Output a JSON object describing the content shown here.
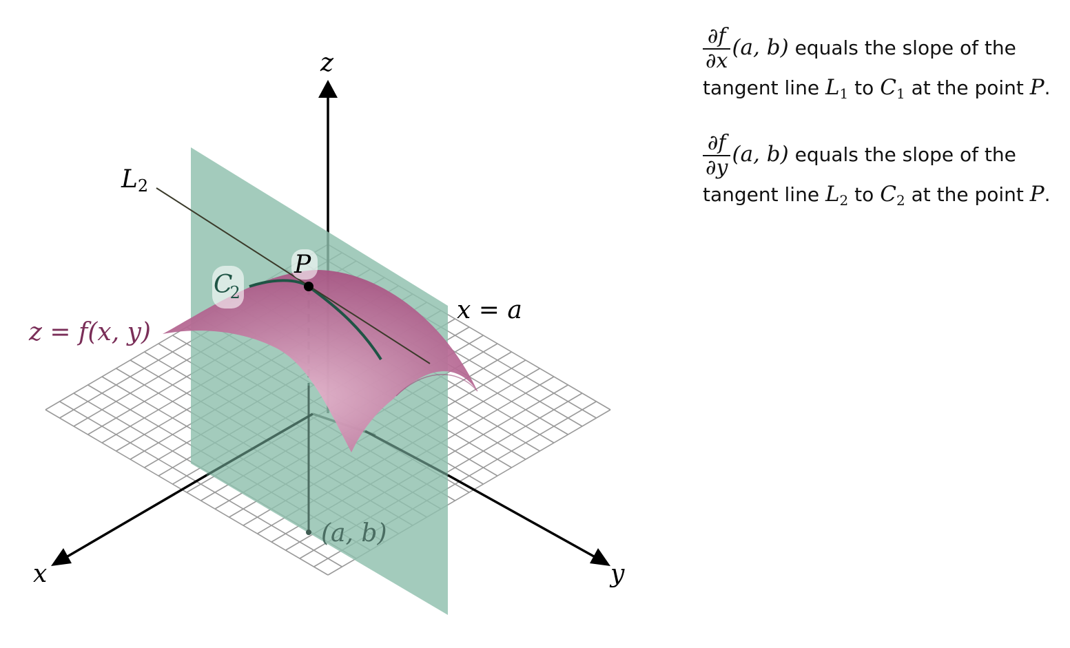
{
  "figure": {
    "axes": {
      "x": "x",
      "y": "y",
      "z": "z"
    },
    "labels": {
      "L2": "L",
      "L2_sub": "2",
      "P": "P",
      "C2": "C",
      "C2_sub": "2",
      "plane": "x = a",
      "surface": "z = f(x, y)",
      "base_point": "(a, b)"
    },
    "colors": {
      "plane": "#8fbfad",
      "surface": "#b5658c",
      "curve": "#1f5445",
      "surface_label": "#7a2e58",
      "grid": "#9a9a9a",
      "axes": "#000000"
    }
  },
  "caption": {
    "p1": {
      "frac_num": "∂f",
      "frac_den": "∂x",
      "args": "(a, b)",
      "t1": " equals the slope of the tangent line ",
      "line": "L",
      "line_sub": "1",
      "t2": " to ",
      "curve": "C",
      "curve_sub": "1",
      "t3": " at the point ",
      "point": "P",
      "t4": "."
    },
    "p2": {
      "frac_num": "∂f",
      "frac_den": "∂y",
      "args": "(a, b)",
      "t1": " equals the slope of the tangent line ",
      "line": "L",
      "line_sub": "2",
      "t2": " to ",
      "curve": "C",
      "curve_sub": "2",
      "t3": " at the point ",
      "point": "P",
      "t4": "."
    }
  }
}
